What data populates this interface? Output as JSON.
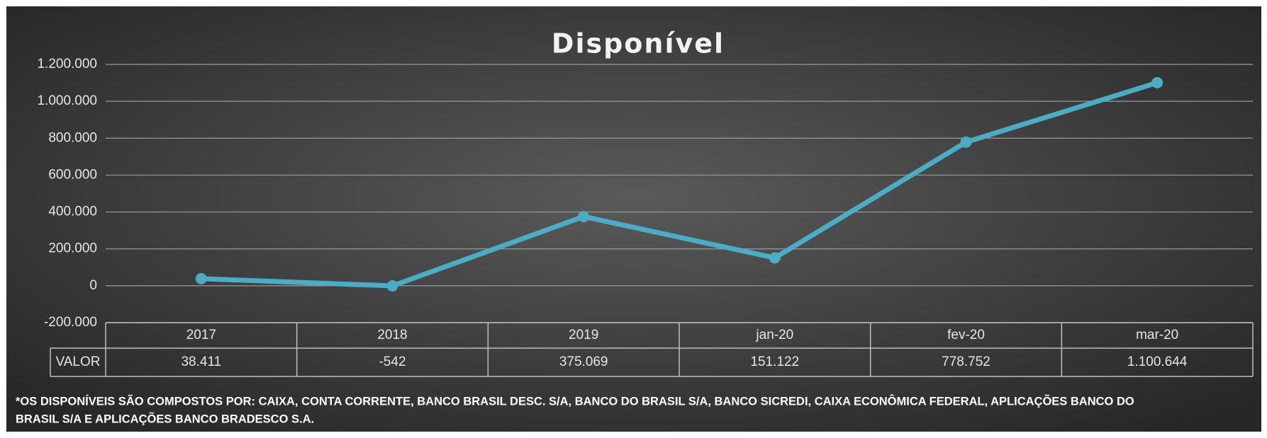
{
  "chart_data": {
    "type": "line",
    "title": "Disponível",
    "categories": [
      "2017",
      "2018",
      "2019",
      "jan-20",
      "fev-20",
      "mar-20"
    ],
    "series": [
      {
        "name": "VALOR",
        "color": "#4bacc6",
        "values": [
          38411,
          -542,
          375069,
          151122,
          778752,
          1100644
        ],
        "value_labels": [
          "38.411",
          "-542",
          "375.069",
          "151.122",
          "778.752",
          "1.100.644"
        ]
      }
    ],
    "ylim": [
      -200000,
      1200000
    ],
    "yticks": [
      {
        "value": -200000,
        "label": "-200.000"
      },
      {
        "value": 0,
        "label": "0"
      },
      {
        "value": 200000,
        "label": "200.000"
      },
      {
        "value": 400000,
        "label": "400.000"
      },
      {
        "value": 600000,
        "label": "600.000"
      },
      {
        "value": 800000,
        "label": "800.000"
      },
      {
        "value": 1000000,
        "label": "1.000.000"
      },
      {
        "value": 1200000,
        "label": "1.200.000"
      }
    ],
    "grid": true,
    "footnote": [
      "*OS DISPONÍVEIS SÃO COMPOSTOS POR: CAIXA,  CONTA CORRENTE, BANCO BRASIL DESC. S/A, BANCO DO BRASIL S/A, BANCO SICREDI, CAIXA ECONÔMICA FEDERAL, APLICAÇÕES BANCO DO",
      "BRASIL S/A E APLICAÇÕES BANCO BRADESCO S.A."
    ]
  }
}
